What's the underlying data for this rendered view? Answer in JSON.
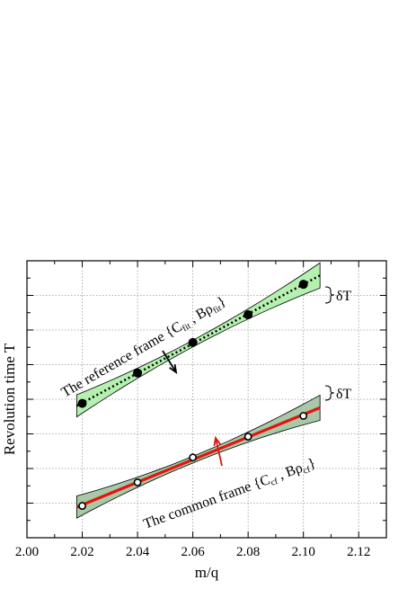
{
  "chart_data": {
    "type": "scatter",
    "xlabel": "m/q",
    "ylabel": "Revolution time T",
    "xlim": [
      2.0,
      2.13
    ],
    "x_ticks": [
      "2.00",
      "2.02",
      "2.04",
      "2.06",
      "2.08",
      "2.10",
      "2.12"
    ],
    "y_minor_ticks": 7,
    "grid": true,
    "series": [
      {
        "marker": "filled-circle",
        "fit_line": "dotted-black",
        "band_color": "#b4f0b0",
        "x": [
          2.02,
          2.04,
          2.06,
          2.08,
          2.1
        ],
        "y": [
          0.235,
          0.345,
          0.455,
          0.555,
          0.665
        ]
      },
      {
        "marker": "open-circle",
        "fit_line": "solid-red",
        "band_color": "#a8c8a8",
        "x": [
          2.02,
          2.04,
          2.06,
          2.08,
          2.1
        ],
        "y": [
          -0.135,
          -0.05,
          0.04,
          0.115,
          0.19
        ]
      }
    ],
    "annotations": {
      "reference": {
        "main": "The reference frame {C",
        "sub1": "fit",
        "mid": " , Bρ",
        "sub2": "fit",
        "end": "}"
      },
      "common": {
        "main": "The common frame {C",
        "sub1": "cf",
        "mid": " , Bρ",
        "sub2": "cf",
        "end": "}"
      },
      "delta_upper": "δT",
      "delta_lower": "δT"
    }
  }
}
